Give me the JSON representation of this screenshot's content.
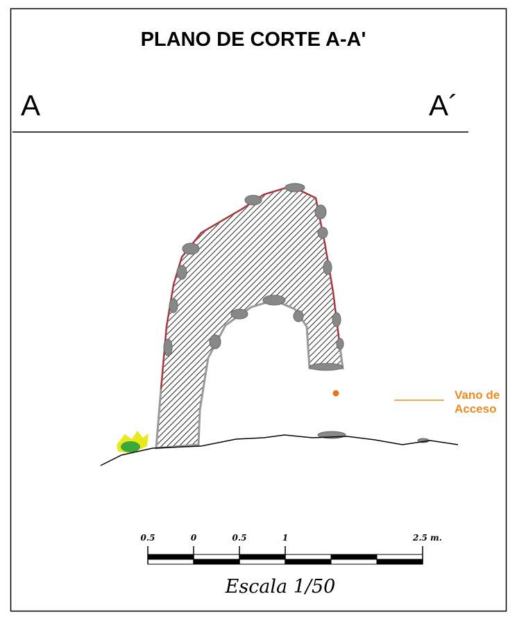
{
  "header": {
    "title": "PLANO DE CORTE A-A'"
  },
  "section_marks": {
    "left": "A",
    "right": "A´"
  },
  "annotation": {
    "lines": [
      "Vano de",
      "Acceso"
    ]
  },
  "scale_bar": {
    "labels": [
      "0.5",
      "0",
      "0.5",
      "1",
      "2.5 m."
    ]
  },
  "scale_text": "Escala  1/50"
}
